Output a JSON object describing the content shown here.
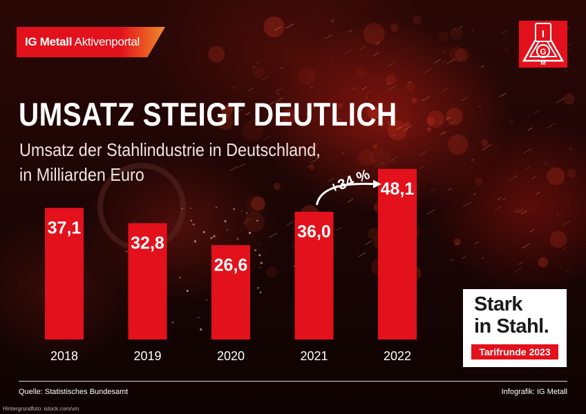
{
  "brand": {
    "name_bold": "IG Metall",
    "name_rest": "Aktivenportal",
    "colors": {
      "red": "#e3111b",
      "orange": "#f08c28",
      "white": "#ffffff"
    },
    "logo": "ig-metall-logo"
  },
  "headline": "UMSATZ STEIGT DEUTLICH",
  "subtitle": {
    "line1": "Umsatz der Stahlindustrie in Deutschland,",
    "line2": "in Milliarden Euro"
  },
  "chart_data": {
    "type": "bar",
    "categories": [
      "2018",
      "2019",
      "2020",
      "2021",
      "2022"
    ],
    "values": [
      37.1,
      32.8,
      26.6,
      36.0,
      48.1
    ],
    "value_labels": [
      "37,1",
      "32,8",
      "26,6",
      "36,0",
      "48,1"
    ],
    "annotation": {
      "text": "+34 %",
      "from": "2021",
      "to": "2022"
    },
    "ylim": [
      0,
      50
    ],
    "grid": false,
    "bar_color": "#e3111b"
  },
  "badge": {
    "line1": "Stark",
    "line2": "in Stahl.",
    "tag": "Tarifrunde 2023"
  },
  "footer": {
    "source": "Quelle: Statistisches Bundesamt",
    "credit": "Infografik: IG Metall",
    "background_credit": "Hintergrundfoto: istock.com/vm"
  }
}
